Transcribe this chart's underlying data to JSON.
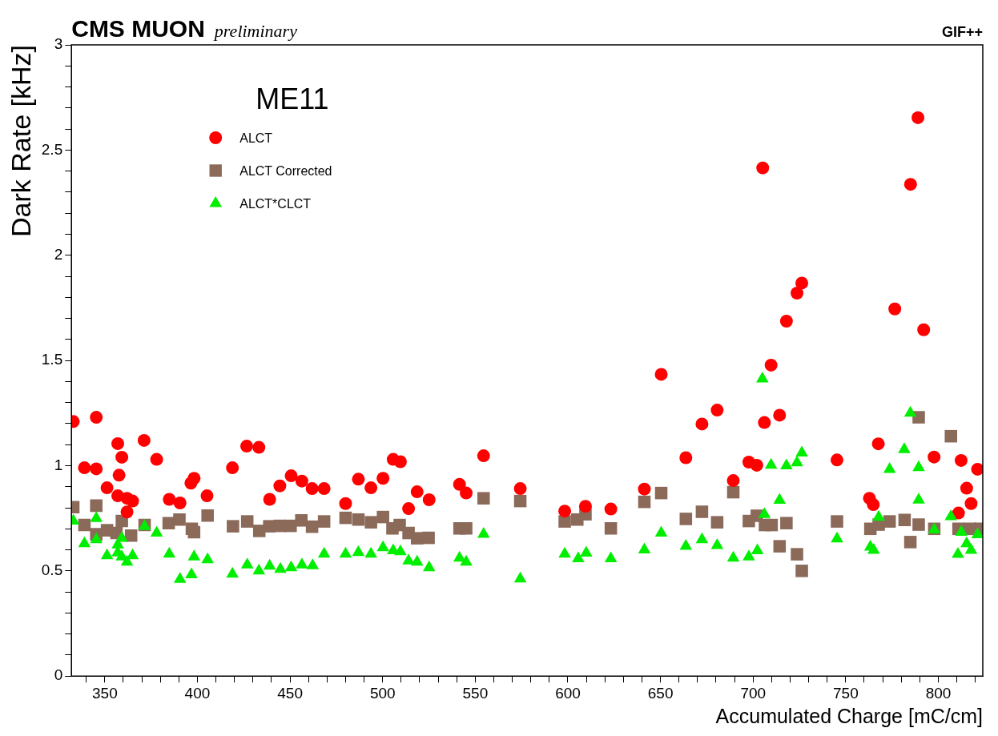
{
  "chart_data": {
    "type": "scatter",
    "title": "CMS MUON",
    "subtitle": "preliminary",
    "annotations": [
      "GIF++"
    ],
    "legend_title": "ME11",
    "legend": "top left",
    "xlabel": "Accumulated Charge [mC/cm]",
    "ylabel": "Dark Rate [kHz]",
    "xlim": [
      332,
      824
    ],
    "ylim": [
      0,
      3
    ],
    "xticks": [
      {
        "value": 340,
        "label": null
      },
      350,
      {
        "value": 360,
        "label": null
      },
      {
        "value": 370,
        "label": null
      },
      {
        "value": 380,
        "label": null
      },
      {
        "value": 390,
        "label": null
      },
      400,
      {
        "value": 410,
        "label": null
      },
      {
        "value": 420,
        "label": null
      },
      {
        "value": 430,
        "label": null
      },
      {
        "value": 440,
        "label": null
      },
      450,
      {
        "value": 460,
        "label": null
      },
      {
        "value": 470,
        "label": null
      },
      {
        "value": 480,
        "label": null
      },
      {
        "value": 490,
        "label": null
      },
      500,
      {
        "value": 510,
        "label": null
      },
      {
        "value": 520,
        "label": null
      },
      {
        "value": 530,
        "label": null
      },
      {
        "value": 540,
        "label": null
      },
      550,
      {
        "value": 560,
        "label": null
      },
      {
        "value": 570,
        "label": null
      },
      {
        "value": 580,
        "label": null
      },
      {
        "value": 590,
        "label": null
      },
      600,
      {
        "value": 610,
        "label": null
      },
      {
        "value": 620,
        "label": null
      },
      {
        "value": 630,
        "label": null
      },
      {
        "value": 640,
        "label": null
      },
      650,
      {
        "value": 660,
        "label": null
      },
      {
        "value": 670,
        "label": null
      },
      {
        "value": 680,
        "label": null
      },
      {
        "value": 690,
        "label": null
      },
      700,
      {
        "value": 710,
        "label": null
      },
      {
        "value": 720,
        "label": null
      },
      {
        "value": 730,
        "label": null
      },
      {
        "value": 740,
        "label": null
      },
      750,
      {
        "value": 760,
        "label": null
      },
      {
        "value": 770,
        "label": null
      },
      {
        "value": 780,
        "label": null
      },
      {
        "value": 790,
        "label": null
      },
      800,
      {
        "value": 810,
        "label": null
      },
      {
        "value": 820,
        "label": null
      }
    ],
    "yticks": [
      0,
      {
        "value": 0.1,
        "label": null
      },
      {
        "value": 0.2,
        "label": null
      },
      {
        "value": 0.3,
        "label": null
      },
      {
        "value": 0.4,
        "label": null
      },
      0.5,
      {
        "value": 0.6,
        "label": null
      },
      {
        "value": 0.7,
        "label": null
      },
      {
        "value": 0.8,
        "label": null
      },
      {
        "value": 0.9,
        "label": null
      },
      1,
      {
        "value": 1.1,
        "label": null
      },
      {
        "value": 1.2,
        "label": null
      },
      {
        "value": 1.3,
        "label": null
      },
      {
        "value": 1.4,
        "label": null
      },
      1.5,
      {
        "value": 1.6,
        "label": null
      },
      {
        "value": 1.7,
        "label": null
      },
      {
        "value": 1.8,
        "label": null
      },
      {
        "value": 1.9,
        "label": null
      },
      2,
      {
        "value": 2.1,
        "label": null
      },
      {
        "value": 2.2,
        "label": null
      },
      {
        "value": 2.3,
        "label": null
      },
      {
        "value": 2.4,
        "label": null
      },
      2.5,
      {
        "value": 2.6,
        "label": null
      },
      {
        "value": 2.7,
        "label": null
      },
      {
        "value": 2.8,
        "label": null
      },
      {
        "value": 2.9,
        "label": null
      },
      3
    ],
    "series": [
      {
        "name": "ALCT",
        "color": "#ff0000",
        "marker": "circle",
        "x": [
          333,
          345.4,
          339,
          345.4,
          351.2,
          357,
          359.2,
          357.7,
          357,
          362,
          365,
          362,
          371.2,
          378,
          384.8,
          390.6,
          398.2,
          396.5,
          405.2,
          418.9,
          426.6,
          433.2,
          439,
          444.5,
          450.6,
          456.4,
          461.9,
          468.4,
          480,
          486.9,
          493.7,
          500.2,
          505.7,
          509.6,
          514,
          518.6,
          525.1,
          541.5,
          545.1,
          554.5,
          574.3,
          598.3,
          609.5,
          623.2,
          641.3,
          650.4,
          663.7,
          672.4,
          680.6,
          689.3,
          697.7,
          702,
          705.2,
          706.1,
          709.7,
          714.3,
          718,
          723.7,
          726.3,
          745.3,
          762.8,
          764.9,
          767.6,
          776.5,
          785,
          789,
          792.1,
          797.7,
          810.9,
          812.3,
          815.3,
          817.7,
          821.2
        ],
        "values": [
          1.21,
          1.23,
          0.99,
          0.985,
          0.895,
          1.105,
          1.04,
          0.955,
          0.857,
          0.845,
          0.832,
          0.78,
          1.12,
          1.03,
          0.84,
          0.823,
          0.94,
          0.917,
          0.857,
          0.99,
          1.093,
          1.087,
          0.84,
          0.904,
          0.952,
          0.927,
          0.891,
          0.891,
          0.82,
          0.936,
          0.895,
          0.94,
          1.03,
          1.019,
          0.796,
          0.876,
          0.838,
          0.911,
          0.87,
          1.047,
          0.891,
          0.784,
          0.807,
          0.794,
          0.889,
          1.434,
          1.038,
          1.198,
          1.264,
          0.929,
          1.017,
          1.002,
          2.415,
          1.205,
          1.478,
          1.24,
          1.687,
          1.82,
          1.868,
          1.027,
          0.845,
          0.815,
          1.104,
          1.745,
          2.337,
          2.654,
          1.646,
          1.041,
          0.775,
          1.025,
          0.893,
          0.82,
          0.983
        ]
      },
      {
        "name": "ALCT Corrected",
        "color": "#8b6a5a",
        "marker": "square",
        "x": [
          333,
          345.4,
          339,
          345.4,
          351.2,
          356.3,
          359.2,
          364.2,
          371.5,
          384.5,
          390.3,
          398.2,
          397,
          405.5,
          419.2,
          426.9,
          433.4,
          438.8,
          444.5,
          450.3,
          456.1,
          461.9,
          468.4,
          480,
          486.9,
          493.7,
          500.2,
          505.3,
          509.2,
          514,
          518.6,
          524.8,
          541.5,
          545.1,
          554.5,
          574.3,
          598.3,
          605.1,
          609.5,
          623.2,
          641.3,
          650.4,
          663.7,
          672.4,
          680.6,
          689.3,
          697.7,
          702,
          706.4,
          710,
          714.3,
          718,
          723.7,
          726.3,
          745.3,
          763.3,
          767.8,
          773.7,
          781.8,
          784.9,
          789.4,
          789.4,
          797.8,
          806.8,
          810.9,
          817.2,
          822.6
        ],
        "values": [
          0.803,
          0.81,
          0.718,
          0.674,
          0.693,
          0.68,
          0.737,
          0.668,
          0.718,
          0.727,
          0.744,
          0.684,
          0.7,
          0.763,
          0.712,
          0.735,
          0.69,
          0.712,
          0.714,
          0.714,
          0.74,
          0.71,
          0.735,
          0.752,
          0.744,
          0.731,
          0.756,
          0.702,
          0.718,
          0.68,
          0.655,
          0.657,
          0.702,
          0.702,
          0.845,
          0.832,
          0.735,
          0.744,
          0.769,
          0.702,
          0.828,
          0.87,
          0.747,
          0.781,
          0.731,
          0.874,
          0.737,
          0.762,
          0.718,
          0.718,
          0.617,
          0.727,
          0.579,
          0.5,
          0.735,
          0.7,
          0.72,
          0.735,
          0.742,
          0.637,
          0.72,
          1.23,
          0.7,
          1.14,
          0.7,
          0.7,
          0.7
        ]
      },
      {
        "name": "ALCT*CLCT",
        "color": "#00ee00",
        "marker": "triangle",
        "x": [
          333,
          339,
          345.4,
          345.4,
          351.2,
          357,
          359.2,
          357,
          359.2,
          362,
          365,
          371.5,
          378,
          384.8,
          390.6,
          396.8,
          398.2,
          405.5,
          418.9,
          426.9,
          433.2,
          439,
          444.8,
          450.6,
          456.4,
          462.2,
          468.4,
          480,
          486.9,
          493.7,
          500.2,
          505.7,
          509.6,
          514,
          518.6,
          525.1,
          541.5,
          545.1,
          554.5,
          574.3,
          598.3,
          605.6,
          609.9,
          623.2,
          641.3,
          650.4,
          663.7,
          672.4,
          680.6,
          689.3,
          697.7,
          702.3,
          705,
          706.1,
          709.7,
          714.3,
          718,
          723.7,
          726.3,
          745.3,
          763.3,
          765.1,
          767.8,
          773.7,
          781.6,
          784.9,
          789.4,
          789.4,
          797.8,
          806.8,
          810.6,
          812.4,
          815.3,
          817.7,
          821.2
        ],
        "values": [
          0.737,
          0.63,
          0.75,
          0.649,
          0.573,
          0.624,
          0.655,
          0.586,
          0.567,
          0.542,
          0.573,
          0.712,
          0.68,
          0.58,
          0.46,
          0.482,
          0.567,
          0.554,
          0.485,
          0.529,
          0.5,
          0.523,
          0.508,
          0.516,
          0.529,
          0.525,
          0.58,
          0.58,
          0.588,
          0.58,
          0.611,
          0.596,
          0.592,
          0.548,
          0.542,
          0.516,
          0.561,
          0.542,
          0.674,
          0.462,
          0.58,
          0.558,
          0.585,
          0.558,
          0.6,
          0.68,
          0.617,
          0.649,
          0.621,
          0.561,
          0.567,
          0.596,
          1.413,
          0.769,
          1.003,
          0.836,
          1.0,
          1.014,
          1.061,
          0.653,
          0.614,
          0.598,
          0.755,
          0.983,
          1.077,
          1.25,
          0.991,
          0.837,
          0.695,
          0.758,
          0.579,
          0.684,
          0.63,
          0.598,
          0.673
        ]
      }
    ]
  }
}
